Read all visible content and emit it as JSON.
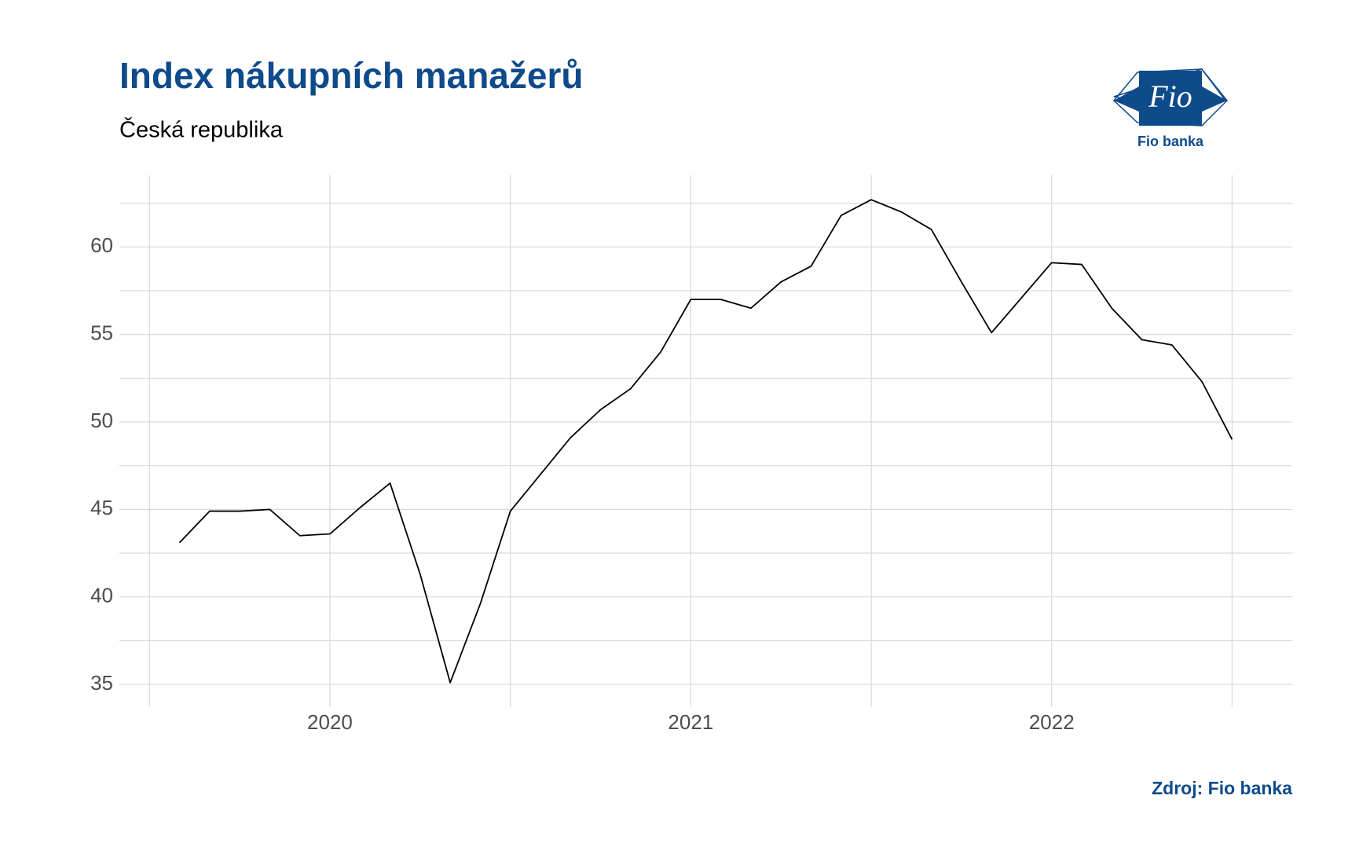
{
  "chart_data": {
    "type": "line",
    "title": "Index nákupních manažerů",
    "subtitle": "Česká republika",
    "caption": "Zdroj: Fio banka",
    "x": [
      "2019-08",
      "2019-09",
      "2019-10",
      "2019-11",
      "2019-12",
      "2020-01",
      "2020-02",
      "2020-03",
      "2020-04",
      "2020-05",
      "2020-06",
      "2020-07",
      "2020-08",
      "2020-09",
      "2020-10",
      "2020-11",
      "2020-12",
      "2021-01",
      "2021-02",
      "2021-03",
      "2021-04",
      "2021-05",
      "2021-06",
      "2021-07",
      "2021-08",
      "2021-09",
      "2021-10",
      "2021-11",
      "2021-12",
      "2022-01",
      "2022-02",
      "2022-03",
      "2022-04",
      "2022-05",
      "2022-06",
      "2022-07"
    ],
    "series": [
      {
        "color": "#000000",
        "values": [
          43.1,
          44.9,
          44.9,
          45.0,
          43.5,
          43.6,
          45.1,
          46.5,
          41.3,
          35.1,
          39.6,
          44.9,
          47.0,
          49.1,
          50.7,
          51.9,
          54.0,
          57.0,
          57.0,
          56.5,
          58.0,
          58.9,
          61.8,
          62.7,
          62.0,
          61.0,
          58.0,
          55.1,
          57.1,
          59.1,
          59.0,
          56.5,
          54.7,
          54.4,
          52.3,
          49.0
        ]
      }
    ],
    "xlim": [
      "2019-06",
      "2022-09"
    ],
    "xticks": [
      {
        "value": "2020-01",
        "label": "2020"
      },
      {
        "value": "2021-01",
        "label": "2021"
      },
      {
        "value": "2022-01",
        "label": "2022"
      }
    ],
    "x_minor_ticks": [
      "2019-07",
      "2020-07",
      "2021-07",
      "2022-07"
    ],
    "ylim": [
      33.7,
      64.1
    ],
    "yticks": [
      35,
      40,
      45,
      50,
      55,
      60
    ],
    "grid": true
  },
  "logo": {
    "mark": "Fio",
    "name": "Fio banka"
  }
}
